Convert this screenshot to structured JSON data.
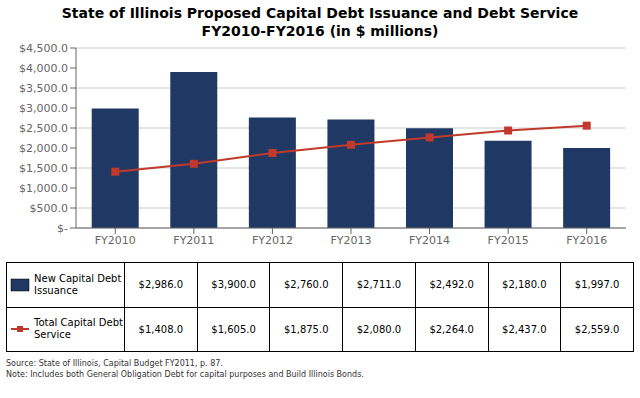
{
  "chart_data": {
    "type": "bar",
    "title": "State of Illinois Proposed Capital Debt Issuance and Debt Service",
    "subtitle": "FY2010-FY2016 (in $ millions)",
    "categories": [
      "FY2010",
      "FY2011",
      "FY2012",
      "FY2013",
      "FY2014",
      "FY2015",
      "FY2016"
    ],
    "series": [
      {
        "name": "New Capital Debt\nIssuance",
        "type": "bar",
        "color": "#1F3864",
        "values": [
          2986.0,
          3900.0,
          2760.0,
          2711.0,
          2492.0,
          2180.0,
          1997.0
        ],
        "value_labels": [
          "$2,986.0",
          "$3,900.0",
          "$2,760.0",
          "$2,711.0",
          "$2,492.0",
          "$2,180.0",
          "$1,997.0"
        ]
      },
      {
        "name": "Total Capital Debt\nService",
        "type": "line",
        "marker": "square",
        "color": "#C0392B",
        "values": [
          1408.0,
          1605.0,
          1875.0,
          2080.0,
          2264.0,
          2437.0,
          2559.0
        ],
        "value_labels": [
          "$1,408.0",
          "$1,605.0",
          "$1,875.0",
          "$2,080.0",
          "$2,264.0",
          "$2,437.0",
          "$2,559.0"
        ]
      }
    ],
    "ylim": [
      0,
      4500
    ],
    "yticks": [
      {
        "value": 0,
        "label": "$-"
      },
      {
        "value": 500,
        "label": "$500.0"
      },
      {
        "value": 1000,
        "label": "$1,000.0"
      },
      {
        "value": 1500,
        "label": "$1,500.0"
      },
      {
        "value": 2000,
        "label": "$2,000.0"
      },
      {
        "value": 2500,
        "label": "$2,500.0"
      },
      {
        "value": 3000,
        "label": "$3,000.0"
      },
      {
        "value": 3500,
        "label": "$3,500.0"
      },
      {
        "value": 4000,
        "label": "$4,000.0"
      },
      {
        "value": 4500,
        "label": "$4,500.0"
      }
    ],
    "grid": true,
    "annotations": [
      "Source: State of Illinois, Capital Budget FY2011, p. 87.\nNote: Includes both General Obligation Debt for capital purposes and Build Illinois Bonds."
    ]
  }
}
